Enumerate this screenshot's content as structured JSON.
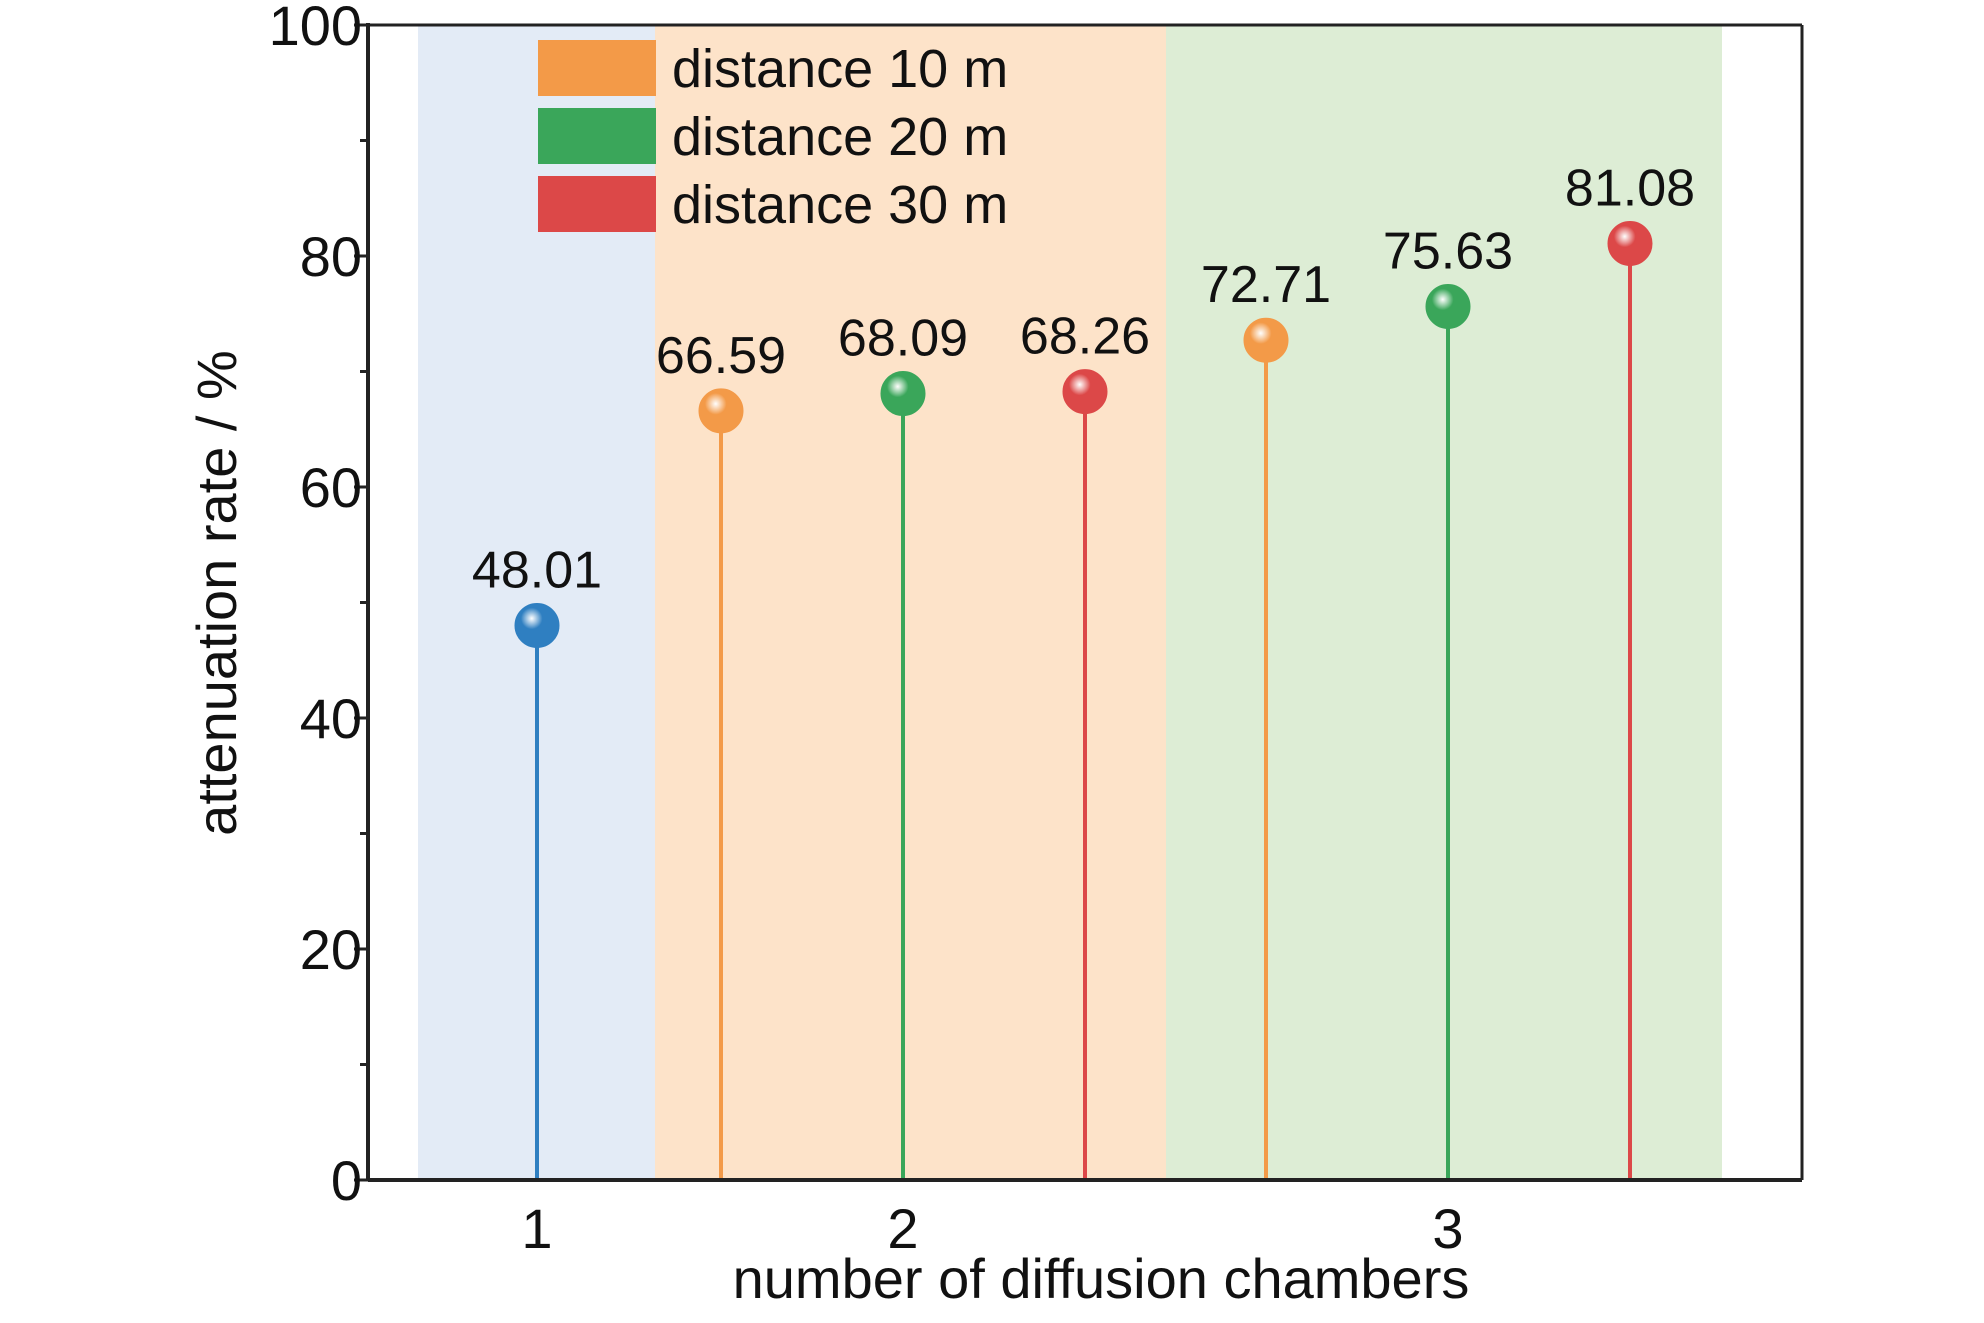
{
  "chart_data": {
    "type": "lollipop",
    "xlabel": "number of diffusion chambers",
    "ylabel": "attenuation rate / %",
    "ylim": [
      0,
      100
    ],
    "yticks": [
      0,
      20,
      40,
      60,
      80,
      100
    ],
    "categories": [
      "1",
      "2",
      "3"
    ],
    "regions": [
      {
        "category": "1",
        "color": "#e3ebf6"
      },
      {
        "category": "2",
        "color": "#fde3c9"
      },
      {
        "category": "3",
        "color": "#ddedd5"
      }
    ],
    "legend": {
      "placement": "top-left",
      "entries": [
        {
          "label": "distance 10 m",
          "color": "#f39a48"
        },
        {
          "label": "distance 20 m",
          "color": "#3aa65a"
        },
        {
          "label": "distance 30 m",
          "color": "#dc4848"
        }
      ]
    },
    "points": [
      {
        "category": "1",
        "series": "",
        "value": 48.01,
        "label": "48.01",
        "color": "#2f7fc1"
      },
      {
        "category": "2",
        "series": "distance 10 m",
        "value": 66.59,
        "label": "66.59",
        "color": "#f39a48"
      },
      {
        "category": "2",
        "series": "distance 20 m",
        "value": 68.09,
        "label": "68.09",
        "color": "#3aa65a"
      },
      {
        "category": "2",
        "series": "distance 30 m",
        "value": 68.26,
        "label": "68.26",
        "color": "#dc4848"
      },
      {
        "category": "3",
        "series": "distance 10 m",
        "value": 72.71,
        "label": "72.71",
        "color": "#f39a48"
      },
      {
        "category": "3",
        "series": "distance 20 m",
        "value": 75.63,
        "label": "75.63",
        "color": "#3aa65a"
      },
      {
        "category": "3",
        "series": "distance 30 m",
        "value": 81.08,
        "label": "81.08",
        "color": "#dc4848"
      }
    ],
    "grid": false
  }
}
